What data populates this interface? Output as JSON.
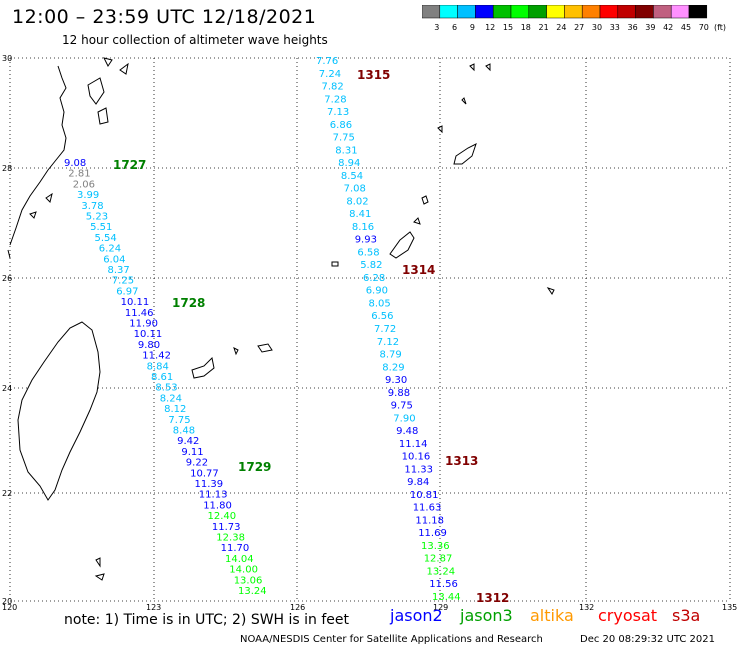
{
  "header": {
    "title": "12:00 – 23:59 UTC 12/18/2021",
    "subtitle": "12 hour collection of altimeter wave heights"
  },
  "scale": {
    "labels": [
      "3",
      "6",
      "9",
      "12",
      "15",
      "18",
      "21",
      "24",
      "27",
      "30",
      "33",
      "36",
      "39",
      "42",
      "45",
      "70"
    ],
    "unit": "(ft)",
    "colors": [
      "#808080",
      "#00ffff",
      "#00c0ff",
      "#0000ff",
      "#00c000",
      "#00ff00",
      "#00a000",
      "#ffff00",
      "#ffc000",
      "#ff8000",
      "#ff0000",
      "#c00000",
      "#800000",
      "#c06080",
      "#ff90ff",
      "#000000"
    ]
  },
  "axes": {
    "lon_labels": [
      "120",
      "123",
      "126",
      "129",
      "132",
      "135"
    ],
    "lat_labels": [
      "30",
      "28",
      "26",
      "24",
      "22",
      "20"
    ]
  },
  "passes": [
    {
      "id": "1727",
      "color": "#008000"
    },
    {
      "id": "1728",
      "color": "#008000"
    },
    {
      "id": "1729",
      "color": "#008000"
    },
    {
      "id": "1315",
      "color": "#800000"
    },
    {
      "id": "1314",
      "color": "#800000"
    },
    {
      "id": "1313",
      "color": "#800000"
    },
    {
      "id": "1312",
      "color": "#800000"
    }
  ],
  "tracks": [
    {
      "name": "track-1727-1729",
      "points": [
        [
          "9.08",
          "#0000ff"
        ],
        [
          "2.81",
          "#808080"
        ],
        [
          "2.06",
          "#808080"
        ],
        [
          "3.99",
          "#00c0ff"
        ],
        [
          "3.78",
          "#00c0ff"
        ],
        [
          "5.23",
          "#00c0ff"
        ],
        [
          "5.51",
          "#00c0ff"
        ],
        [
          "5.54",
          "#00c0ff"
        ],
        [
          "6.24",
          "#00c0ff"
        ],
        [
          "6.04",
          "#00c0ff"
        ],
        [
          "8.37",
          "#00c0ff"
        ],
        [
          "7.25",
          "#00c0ff"
        ],
        [
          "6.97",
          "#00c0ff"
        ],
        [
          "10.11",
          "#0000ff"
        ],
        [
          "11.46",
          "#0000ff"
        ],
        [
          "11.90",
          "#0000ff"
        ],
        [
          "10.11",
          "#0000ff"
        ],
        [
          "9.80",
          "#0000ff"
        ],
        [
          "11.42",
          "#0000ff"
        ],
        [
          "8.84",
          "#00c0ff"
        ],
        [
          "8.61",
          "#00c0ff"
        ],
        [
          "8.53",
          "#00c0ff"
        ],
        [
          "8.24",
          "#00c0ff"
        ],
        [
          "8.12",
          "#00c0ff"
        ],
        [
          "7.75",
          "#00c0ff"
        ],
        [
          "8.48",
          "#00c0ff"
        ],
        [
          "9.42",
          "#0000ff"
        ],
        [
          "9.11",
          "#0000ff"
        ],
        [
          "9.22",
          "#0000ff"
        ],
        [
          "10.77",
          "#0000ff"
        ],
        [
          "11.39",
          "#0000ff"
        ],
        [
          "11.13",
          "#0000ff"
        ],
        [
          "11.80",
          "#0000ff"
        ],
        [
          "12.40",
          "#00ff00"
        ],
        [
          "11.73",
          "#0000ff"
        ],
        [
          "12.38",
          "#00ff00"
        ],
        [
          "11.70",
          "#0000ff"
        ],
        [
          "14.04",
          "#00ff00"
        ],
        [
          "14.00",
          "#00ff00"
        ],
        [
          "13.06",
          "#00ff00"
        ],
        [
          "13.24",
          "#00ff00"
        ]
      ]
    },
    {
      "name": "track-1315-1312",
      "points": [
        [
          "7.76",
          "#00c0ff"
        ],
        [
          "7.24",
          "#00c0ff"
        ],
        [
          "7.82",
          "#00c0ff"
        ],
        [
          "7.28",
          "#00c0ff"
        ],
        [
          "7.13",
          "#00c0ff"
        ],
        [
          "6.86",
          "#00c0ff"
        ],
        [
          "7.75",
          "#00c0ff"
        ],
        [
          "8.31",
          "#00c0ff"
        ],
        [
          "8.94",
          "#00c0ff"
        ],
        [
          "8.54",
          "#00c0ff"
        ],
        [
          "7.08",
          "#00c0ff"
        ],
        [
          "8.02",
          "#00c0ff"
        ],
        [
          "8.41",
          "#00c0ff"
        ],
        [
          "8.16",
          "#00c0ff"
        ],
        [
          "9.93",
          "#0000ff"
        ],
        [
          "6.58",
          "#00c0ff"
        ],
        [
          "5.82",
          "#00c0ff"
        ],
        [
          "6.28",
          "#00c0ff"
        ],
        [
          "6.90",
          "#00c0ff"
        ],
        [
          "8.05",
          "#00c0ff"
        ],
        [
          "6.56",
          "#00c0ff"
        ],
        [
          "7.72",
          "#00c0ff"
        ],
        [
          "7.12",
          "#00c0ff"
        ],
        [
          "8.79",
          "#00c0ff"
        ],
        [
          "8.29",
          "#00c0ff"
        ],
        [
          "9.30",
          "#0000ff"
        ],
        [
          "9.88",
          "#0000ff"
        ],
        [
          "9.75",
          "#0000ff"
        ],
        [
          "7.90",
          "#00c0ff"
        ],
        [
          "9.48",
          "#0000ff"
        ],
        [
          "11.14",
          "#0000ff"
        ],
        [
          "10.16",
          "#0000ff"
        ],
        [
          "11.33",
          "#0000ff"
        ],
        [
          "9.84",
          "#0000ff"
        ],
        [
          "10.81",
          "#0000ff"
        ],
        [
          "11.63",
          "#0000ff"
        ],
        [
          "11.18",
          "#0000ff"
        ],
        [
          "11.69",
          "#0000ff"
        ],
        [
          "13.36",
          "#00ff00"
        ],
        [
          "12.87",
          "#00ff00"
        ],
        [
          "13.24",
          "#00ff00"
        ],
        [
          "11.56",
          "#0000ff"
        ],
        [
          "13.44",
          "#00ff00"
        ]
      ]
    }
  ],
  "footer": {
    "note": "note:  1) Time is in UTC;  2) SWH is in feet",
    "satellites": [
      {
        "label": "jason2",
        "color": "#0000ff"
      },
      {
        "label": "jason3",
        "color": "#00a000"
      },
      {
        "label": "altika",
        "color": "#ff9900"
      },
      {
        "label": "cryosat",
        "color": "#ff0000"
      },
      {
        "label": "s3a",
        "color": "#c00000"
      }
    ],
    "credit": "NOAA/NESDIS Center for Satellite Applications and Research",
    "timestamp": "Dec 20 08:29:32 UTC 2021"
  }
}
